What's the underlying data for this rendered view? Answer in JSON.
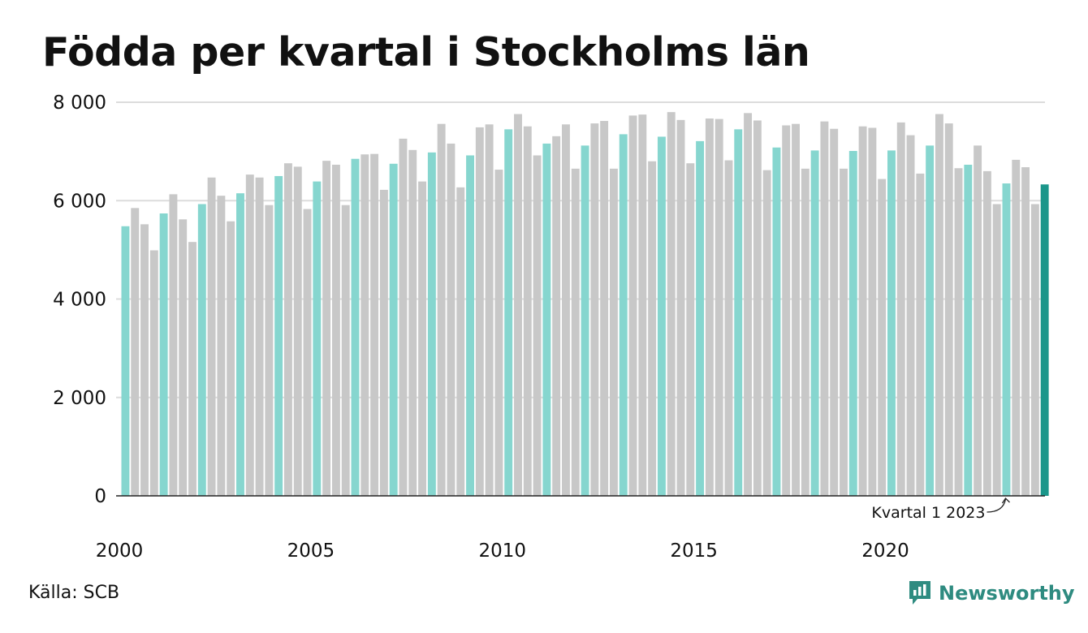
{
  "title": "Födda per kvartal i Stockholms län",
  "source": "Källa: SCB",
  "brand": {
    "name": "Newsworthy",
    "icon": "newsworthy-logo-icon"
  },
  "colors": {
    "q1": "#86d6cf",
    "other": "#c8c8c8",
    "latest": "#1a968a",
    "grid": "#dcdcdc",
    "axis": "#222222"
  },
  "chart_data": {
    "type": "bar",
    "xlabel": "",
    "ylabel": "",
    "ylim": [
      0,
      8000
    ],
    "yticks": [
      0,
      2000,
      4000,
      6000,
      8000
    ],
    "ytick_labels": [
      "0",
      "2 000",
      "4 000",
      "6 000",
      "8 000"
    ],
    "xtick_labels": [
      "2000",
      "2005",
      "2010",
      "2015",
      "2020"
    ],
    "x_start": "2000-Q1",
    "highlight": "Q1 bars in teal, latest bar in dark teal",
    "annotation": "Kvartal 1 2023",
    "grid": true,
    "values": [
      5480,
      5850,
      5520,
      4990,
      5740,
      6130,
      5620,
      5160,
      5930,
      6470,
      6100,
      5580,
      6150,
      6530,
      6470,
      5910,
      6500,
      6760,
      6690,
      5830,
      6390,
      6810,
      6730,
      5910,
      6850,
      6940,
      6950,
      6220,
      6750,
      7260,
      7030,
      6390,
      6980,
      7560,
      7160,
      6270,
      6920,
      7490,
      7550,
      6630,
      7450,
      7760,
      7510,
      6920,
      7160,
      7310,
      7550,
      6650,
      7120,
      7570,
      7620,
      6650,
      7350,
      7730,
      7750,
      6800,
      7300,
      7800,
      7640,
      6760,
      7210,
      7670,
      7660,
      6820,
      7450,
      7780,
      7630,
      6620,
      7080,
      7530,
      7560,
      6650,
      7020,
      7610,
      7460,
      6650,
      7010,
      7510,
      7480,
      6440,
      7020,
      7590,
      7330,
      6550,
      7120,
      7760,
      7570,
      6660,
      6730,
      7120,
      6600,
      5930,
      6350,
      6830,
      6680,
      5930,
      6330
    ]
  }
}
